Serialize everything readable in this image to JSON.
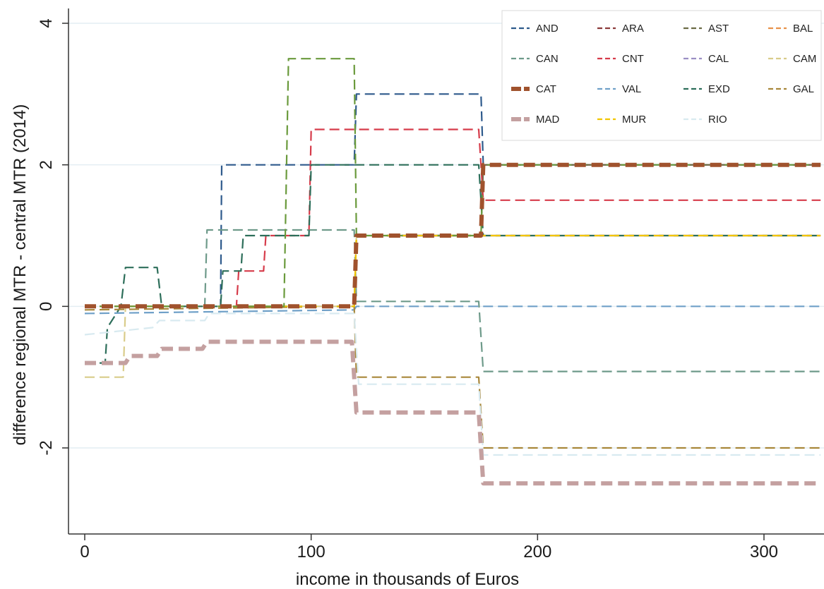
{
  "chart_data": {
    "type": "line",
    "title": "",
    "xlabel": "income in thousands of Euros",
    "ylabel": "difference regional MTR - central MTR (2014)",
    "xlim": [
      0,
      325
    ],
    "ylim": [
      -3.2,
      4.2
    ],
    "xticks": [
      0,
      100,
      200,
      300
    ],
    "xtick_labels": [
      "0",
      "100",
      "200",
      "300"
    ],
    "yticks": [
      4,
      2,
      0,
      -2
    ],
    "ytick_labels": [
      "4",
      "2",
      "0",
      "-2"
    ],
    "grid": "horizontal at y ticks",
    "legend_position": "top-right",
    "series": [
      {
        "name": "AND",
        "color": "#2e5a8c",
        "dash": "dashed",
        "width": "thin",
        "points": [
          [
            0,
            0
          ],
          [
            60,
            0
          ],
          [
            60.5,
            2
          ],
          [
            119,
            2
          ],
          [
            120,
            3
          ],
          [
            175,
            3
          ],
          [
            176,
            2
          ],
          [
            325,
            2
          ]
        ]
      },
      {
        "name": "ARA",
        "color": "#8b3a3a",
        "dash": "dashed",
        "width": "thin",
        "points": [
          [
            0,
            0
          ],
          [
            119,
            0
          ],
          [
            120,
            1
          ],
          [
            175,
            1
          ],
          [
            176,
            2
          ],
          [
            325,
            2
          ]
        ]
      },
      {
        "name": "AST",
        "color": "#6b6b45",
        "dash": "dashed",
        "width": "thin",
        "points": [
          [
            0,
            0
          ],
          [
            119,
            0
          ],
          [
            120,
            1
          ],
          [
            175,
            1
          ],
          [
            176,
            2
          ],
          [
            325,
            2
          ]
        ]
      },
      {
        "name": "BAL",
        "color": "#e8924a",
        "dash": "dashed",
        "width": "thin",
        "points": [
          [
            0,
            0
          ],
          [
            119,
            0
          ],
          [
            120,
            1
          ],
          [
            175,
            1
          ],
          [
            176,
            1
          ],
          [
            325,
            1
          ]
        ]
      },
      {
        "name": "CAN",
        "color": "#6e9a8a",
        "dash": "dashed",
        "width": "thin",
        "points": [
          [
            0,
            0
          ],
          [
            53,
            0
          ],
          [
            54,
            1.08
          ],
          [
            119,
            1.08
          ],
          [
            120,
            0.07
          ],
          [
            174,
            0.07
          ],
          [
            176,
            -0.92
          ],
          [
            325,
            -0.92
          ]
        ]
      },
      {
        "name": "CNT",
        "color": "#d63b4a",
        "dash": "dashed",
        "width": "thin",
        "points": [
          [
            0,
            0
          ],
          [
            67,
            0
          ],
          [
            68,
            0.5
          ],
          [
            79,
            0.5
          ],
          [
            80,
            1
          ],
          [
            99,
            1
          ],
          [
            100,
            2.5
          ],
          [
            174,
            2.5
          ],
          [
            176,
            1.5
          ],
          [
            325,
            1.5
          ]
        ]
      },
      {
        "name": "CAL",
        "color": "#9b8fc4",
        "dash": "dashed",
        "width": "thin",
        "points": [
          [
            0,
            0
          ],
          [
            119,
            0
          ],
          [
            120,
            1
          ],
          [
            175,
            1
          ],
          [
            176,
            1
          ],
          [
            325,
            1
          ]
        ]
      },
      {
        "name": "CAM",
        "color": "#d9cc8a",
        "dash": "dashed",
        "width": "thin",
        "points": [
          [
            0,
            -1
          ],
          [
            17,
            -1
          ],
          [
            18,
            0
          ],
          [
            119,
            0
          ],
          [
            120,
            1
          ],
          [
            175,
            1
          ],
          [
            176,
            1
          ],
          [
            325,
            1
          ]
        ]
      },
      {
        "name": "CAT",
        "color": "#a0522d",
        "dash": "dashed",
        "width": "thick",
        "points": [
          [
            0,
            0
          ],
          [
            119,
            0
          ],
          [
            120,
            1
          ],
          [
            175,
            1
          ],
          [
            176,
            2
          ],
          [
            325,
            2
          ]
        ]
      },
      {
        "name": "VAL",
        "color": "#6fa0c8",
        "dash": "dashed",
        "width": "thin",
        "points": [
          [
            0,
            -0.1
          ],
          [
            119,
            -0.05
          ],
          [
            120,
            0
          ],
          [
            325,
            0
          ]
        ]
      },
      {
        "name": "EXD",
        "color": "#2d6e5a",
        "dash": "dashed",
        "width": "thin",
        "points": [
          [
            0,
            -0.8
          ],
          [
            9,
            -0.8
          ],
          [
            10,
            -0.3
          ],
          [
            16,
            0
          ],
          [
            18,
            0.55
          ],
          [
            32,
            0.55
          ],
          [
            34,
            0
          ],
          [
            60,
            0
          ],
          [
            61,
            0.5
          ],
          [
            69,
            0.5
          ],
          [
            70,
            1
          ],
          [
            99,
            1
          ],
          [
            100,
            2
          ],
          [
            174,
            2
          ],
          [
            176,
            1
          ],
          [
            325,
            1
          ]
        ]
      },
      {
        "name": "GAL",
        "color": "#a8873a",
        "dash": "dashed",
        "width": "thin",
        "points": [
          [
            0,
            -0.05
          ],
          [
            119,
            0
          ],
          [
            120,
            -1
          ],
          [
            174,
            -1
          ],
          [
            176,
            -2
          ],
          [
            325,
            -2
          ]
        ]
      },
      {
        "name": "MAD",
        "color": "#c4a0a0",
        "dash": "dashed",
        "width": "thick",
        "points": [
          [
            0,
            -0.8
          ],
          [
            18,
            -0.8
          ],
          [
            20,
            -0.7
          ],
          [
            32,
            -0.7
          ],
          [
            34,
            -0.6
          ],
          [
            52,
            -0.6
          ],
          [
            54,
            -0.5
          ],
          [
            118,
            -0.5
          ],
          [
            120,
            -1.5
          ],
          [
            174,
            -1.5
          ],
          [
            176,
            -2.5
          ],
          [
            325,
            -2.5
          ]
        ]
      },
      {
        "name": "MUR",
        "color": "#f2c500",
        "dash": "dashed",
        "width": "thin",
        "points": [
          [
            0,
            0
          ],
          [
            119,
            0
          ],
          [
            120,
            1
          ],
          [
            175,
            1
          ],
          [
            176,
            1
          ],
          [
            325,
            1
          ]
        ]
      },
      {
        "name": "RIO",
        "color": "#d8eaf0",
        "dash": "dashed",
        "width": "thin",
        "points": [
          [
            0,
            -0.4
          ],
          [
            30,
            -0.3
          ],
          [
            33,
            -0.2
          ],
          [
            53,
            -0.2
          ],
          [
            55,
            -0.1
          ],
          [
            119,
            -0.1
          ],
          [
            121,
            -1.1
          ],
          [
            174,
            -1.1
          ],
          [
            176,
            -2.1
          ],
          [
            325,
            -2.1
          ]
        ]
      },
      {
        "name": "",
        "color": "#6a9a3c",
        "dash": "dashed",
        "width": "thin",
        "points": [
          [
            0,
            0
          ],
          [
            88,
            0
          ],
          [
            90,
            3.5
          ],
          [
            119,
            3.5
          ],
          [
            120,
            1
          ],
          [
            175,
            1
          ],
          [
            176,
            2
          ],
          [
            325,
            2
          ]
        ]
      }
    ]
  }
}
